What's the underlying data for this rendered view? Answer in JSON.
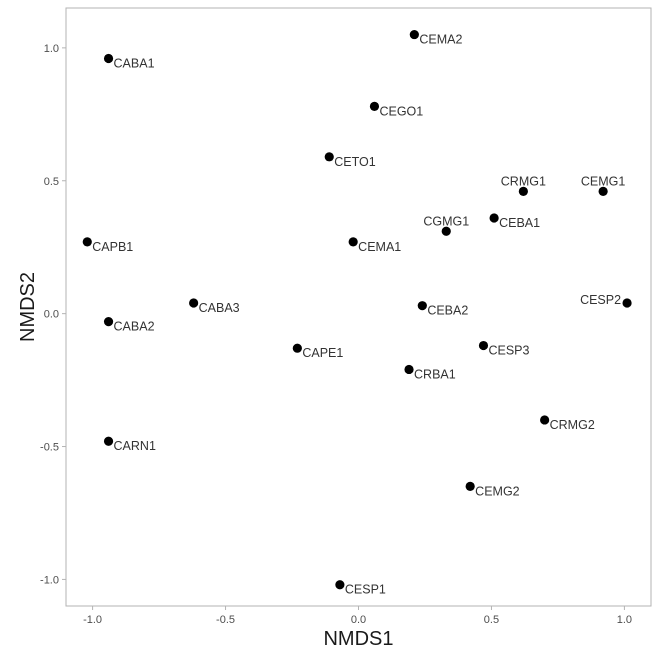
{
  "chart_data": {
    "type": "scatter",
    "title": "",
    "xlabel": "NMDS1",
    "ylabel": "NMDS2",
    "xlim": [
      -1.1,
      1.1
    ],
    "ylim": [
      -1.1,
      1.15
    ],
    "xticks": [
      -1.0,
      -0.5,
      0.0,
      0.5,
      1.0
    ],
    "xtick_labels": [
      "-1.0",
      "-0.5",
      "0.0",
      "0.5",
      "1.0"
    ],
    "yticks": [
      -1.0,
      -0.5,
      0.0,
      0.5,
      1.0
    ],
    "ytick_labels": [
      "-1.0",
      "-0.5",
      "0.0",
      "0.5",
      "1.0"
    ],
    "grid": false,
    "legend": "none",
    "point_color": "#000000",
    "points": [
      {
        "label": "CABA1",
        "x": -0.94,
        "y": 0.96,
        "anchor": "right"
      },
      {
        "label": "CEMA2",
        "x": 0.21,
        "y": 1.05,
        "anchor": "right"
      },
      {
        "label": "CEGO1",
        "x": 0.06,
        "y": 0.78,
        "anchor": "right"
      },
      {
        "label": "CETO1",
        "x": -0.11,
        "y": 0.59,
        "anchor": "right"
      },
      {
        "label": "CRMG1",
        "x": 0.62,
        "y": 0.46,
        "anchor": "above"
      },
      {
        "label": "CEMG1",
        "x": 0.92,
        "y": 0.46,
        "anchor": "above"
      },
      {
        "label": "CEBA1",
        "x": 0.51,
        "y": 0.36,
        "anchor": "right"
      },
      {
        "label": "CGMG1",
        "x": 0.33,
        "y": 0.31,
        "anchor": "above"
      },
      {
        "label": "CAPB1",
        "x": -1.02,
        "y": 0.27,
        "anchor": "right"
      },
      {
        "label": "CEMA1",
        "x": -0.02,
        "y": 0.27,
        "anchor": "right"
      },
      {
        "label": "CESP2",
        "x": 1.01,
        "y": 0.04,
        "anchor": "left"
      },
      {
        "label": "CABA3",
        "x": -0.62,
        "y": 0.04,
        "anchor": "right"
      },
      {
        "label": "CEBA2",
        "x": 0.24,
        "y": 0.03,
        "anchor": "right"
      },
      {
        "label": "CABA2",
        "x": -0.94,
        "y": -0.03,
        "anchor": "right"
      },
      {
        "label": "CAPE1",
        "x": -0.23,
        "y": -0.13,
        "anchor": "right"
      },
      {
        "label": "CESP3",
        "x": 0.47,
        "y": -0.12,
        "anchor": "right"
      },
      {
        "label": "CRBA1",
        "x": 0.19,
        "y": -0.21,
        "anchor": "right"
      },
      {
        "label": "CRMG2",
        "x": 0.7,
        "y": -0.4,
        "anchor": "right"
      },
      {
        "label": "CARN1",
        "x": -0.94,
        "y": -0.48,
        "anchor": "right"
      },
      {
        "label": "CEMG2",
        "x": 0.42,
        "y": -0.65,
        "anchor": "right"
      },
      {
        "label": "CESP1",
        "x": -0.07,
        "y": -1.02,
        "anchor": "right"
      }
    ]
  }
}
